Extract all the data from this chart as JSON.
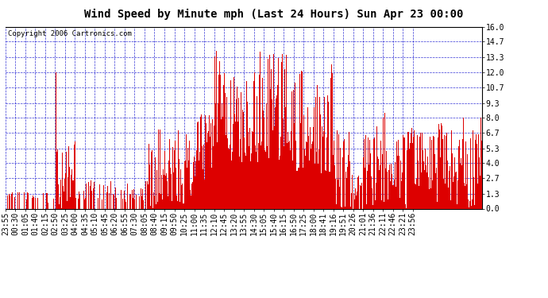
{
  "title": "Wind Speed by Minute mph (Last 24 Hours) Sun Apr 23 00:00",
  "copyright": "Copyright 2006 Cartronics.com",
  "ylabel_values": [
    0.0,
    1.3,
    2.7,
    4.0,
    5.3,
    6.7,
    8.0,
    9.3,
    10.7,
    12.0,
    13.3,
    14.7,
    16.0
  ],
  "ylim": [
    0.0,
    16.0
  ],
  "bg_color": "#ffffff",
  "plot_bg_color": "#ffffff",
  "bar_color": "#dd0000",
  "grid_color": "#0000cc",
  "title_color": "#000000",
  "copyright_color": "#000000",
  "num_minutes": 1441,
  "title_fontsize": 10,
  "copyright_fontsize": 6.5,
  "tick_fontsize": 7,
  "tick_labels": [
    "23:55",
    "00:30",
    "01:05",
    "01:40",
    "02:15",
    "02:50",
    "03:25",
    "04:00",
    "04:35",
    "05:10",
    "05:45",
    "06:20",
    "06:55",
    "07:30",
    "08:05",
    "08:40",
    "09:15",
    "09:50",
    "10:25",
    "11:00",
    "11:35",
    "12:10",
    "12:45",
    "13:20",
    "13:55",
    "14:30",
    "15:05",
    "15:40",
    "16:15",
    "16:50",
    "17:25",
    "18:00",
    "18:41",
    "19:16",
    "19:51",
    "20:26",
    "21:01",
    "21:36",
    "22:11",
    "22:46",
    "23:21",
    "23:56"
  ]
}
